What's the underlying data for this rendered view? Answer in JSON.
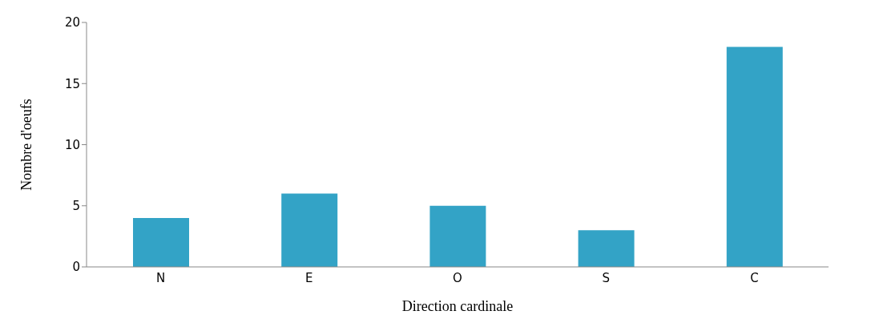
{
  "chart_data": {
    "type": "bar",
    "xlabel": "Direction cardinale",
    "ylabel": "Nombre d'oeufs",
    "categories": [
      "N",
      "E",
      "O",
      "S",
      "C"
    ],
    "values": [
      4,
      6,
      5,
      3,
      18
    ],
    "color": "#33a3c6",
    "ylim": [
      0,
      20
    ],
    "yticks": [
      0,
      5,
      10,
      15,
      20
    ],
    "grid": false
  }
}
